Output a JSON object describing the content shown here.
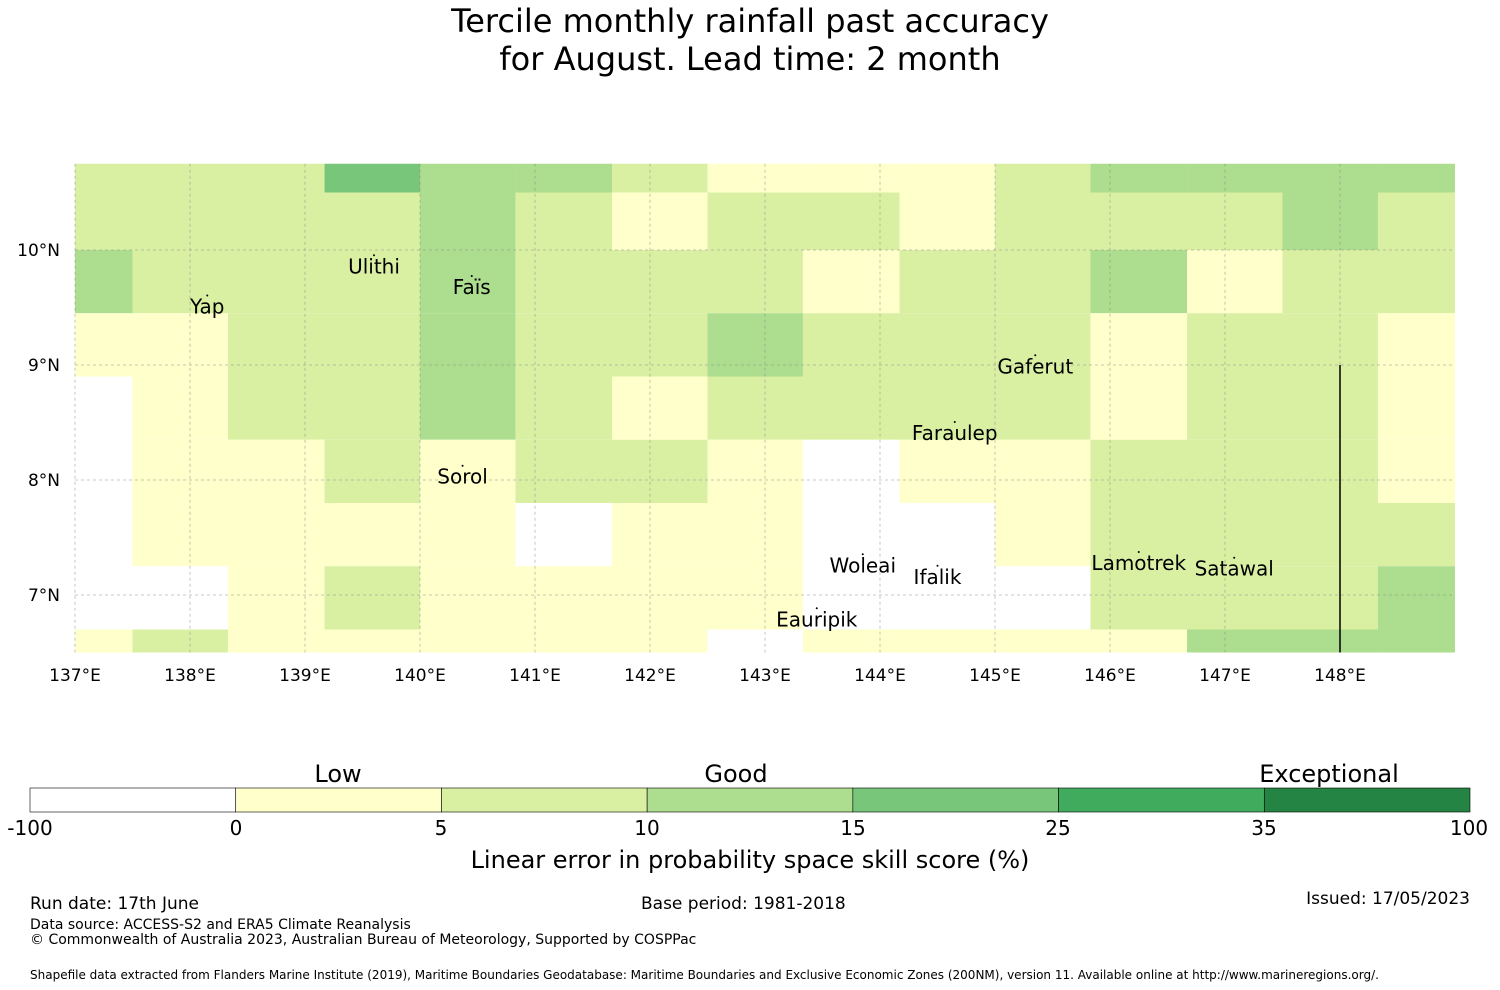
{
  "title": {
    "line1": "Tercile monthly rainfall past accuracy",
    "line2": "for August. Lead time: 2 month"
  },
  "map": {
    "lat_labels": [
      "10°N",
      "9°N",
      "8°N",
      "7°N"
    ],
    "lon_labels": [
      "137°E",
      "138°E",
      "139°E",
      "140°E",
      "141°E",
      "142°E",
      "143°E",
      "144°E",
      "145°E",
      "146°E",
      "147°E",
      "148°E"
    ],
    "islands": [
      {
        "name": "Yap",
        "lon": 138.15,
        "lat": 9.5
      },
      {
        "name": "Ulithi",
        "lon": 139.6,
        "lat": 9.85
      },
      {
        "name": "Faïs",
        "lon": 140.45,
        "lat": 9.67
      },
      {
        "name": "Gaferut",
        "lon": 145.35,
        "lat": 8.98
      },
      {
        "name": "Faraulep",
        "lon": 144.65,
        "lat": 8.4
      },
      {
        "name": "Sorol",
        "lon": 140.37,
        "lat": 8.02
      },
      {
        "name": "Woleai",
        "lon": 143.85,
        "lat": 7.25
      },
      {
        "name": "Ifalik",
        "lon": 144.5,
        "lat": 7.15
      },
      {
        "name": "Lamotrek",
        "lon": 146.25,
        "lat": 7.27
      },
      {
        "name": "Satawal",
        "lon": 147.08,
        "lat": 7.22
      },
      {
        "name": "Eauripik",
        "lon": 143.45,
        "lat": 6.78
      }
    ],
    "colors": [
      "#ffffff",
      "#ffffcc",
      "#d9f0a3",
      "#addd8e",
      "#78c679",
      "#41ab5d",
      "#238443"
    ],
    "grid": {
      "lon_edges": [
        137.0,
        137.5,
        138.33,
        139.17,
        140.0,
        140.83,
        141.67,
        142.5,
        143.33,
        144.17,
        145.0,
        145.83,
        146.67,
        147.5,
        148.33,
        149.0
      ],
      "lat_edges_top_down": [
        10.75,
        10.5,
        10.0,
        9.45,
        8.9,
        8.35,
        7.8,
        7.25,
        6.7,
        6.5
      ],
      "skill_class_rows": [
        [
          2,
          2,
          2,
          4,
          3,
          3,
          2,
          1,
          1,
          1,
          2,
          3,
          3,
          3,
          3
        ],
        [
          2,
          2,
          2,
          2,
          3,
          2,
          1,
          2,
          2,
          1,
          2,
          2,
          2,
          3,
          2
        ],
        [
          3,
          2,
          2,
          2,
          3,
          2,
          2,
          2,
          1,
          2,
          2,
          3,
          1,
          2,
          2
        ],
        [
          1,
          1,
          2,
          2,
          3,
          2,
          2,
          3,
          2,
          2,
          2,
          1,
          2,
          2,
          1
        ],
        [
          0,
          1,
          2,
          2,
          3,
          2,
          1,
          2,
          2,
          2,
          2,
          1,
          2,
          2,
          1
        ],
        [
          0,
          1,
          1,
          2,
          1,
          2,
          2,
          1,
          0,
          1,
          1,
          2,
          2,
          2,
          1
        ],
        [
          0,
          1,
          1,
          1,
          1,
          0,
          1,
          1,
          0,
          0,
          1,
          2,
          2,
          2,
          2
        ],
        [
          0,
          0,
          1,
          2,
          1,
          1,
          1,
          1,
          0,
          0,
          0,
          2,
          2,
          2,
          3
        ],
        [
          1,
          2,
          1,
          1,
          1,
          1,
          1,
          0,
          1,
          1,
          1,
          1,
          3,
          3,
          3
        ]
      ]
    }
  },
  "colorbar": {
    "category_labels": [
      "Low",
      "Good",
      "Exceptional"
    ],
    "tick_labels": [
      "-100",
      "0",
      "5",
      "10",
      "15",
      "25",
      "35",
      "100"
    ],
    "title": "Linear error in probability space skill score (%)"
  },
  "footer": {
    "run_date": "Run date: 17th June",
    "base_period": "Base period: 1981-2018",
    "issued": "Issued: 17/05/2023",
    "data_source": "Data source: ACCESS-S2 and ERA5 Climate Reanalysis",
    "copyright": "© Commonwealth of Australia 2023, Australian Bureau of Meteorology, Supported by COSPPac",
    "shapefile": "Shapefile data extracted from Flanders Marine Institute (2019), Maritime Boundaries Geodatabase: Maritime Boundaries and Exclusive Economic Zones (200NM), version 11. Available online at http://www.marineregions.org/."
  }
}
